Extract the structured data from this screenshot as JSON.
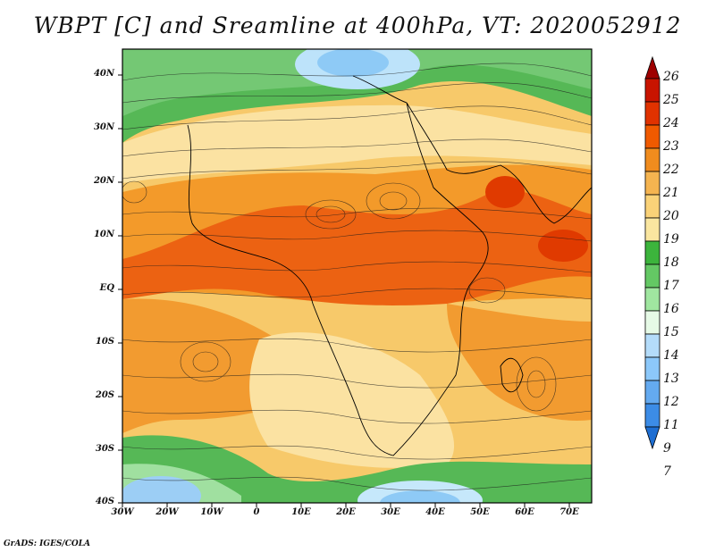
{
  "title": "WBPT [C] and Sreamline at 400hPa, VT: 2020052912",
  "credit": "GrADS: IGES/COLA",
  "lat_labels": [
    "40N",
    "30N",
    "20N",
    "10N",
    "EQ",
    "10S",
    "20S",
    "30S",
    "40S"
  ],
  "lon_labels": [
    "30W",
    "20W",
    "10W",
    "0",
    "10E",
    "20E",
    "30E",
    "40E",
    "50E",
    "60E",
    "70E"
  ],
  "colorbar": {
    "labels": [
      "26",
      "25",
      "24",
      "23",
      "22",
      "21",
      "20",
      "19",
      "18",
      "17",
      "16",
      "15",
      "14",
      "13",
      "12",
      "11",
      "9",
      "7"
    ],
    "colors": [
      "#9e0000",
      "#c81400",
      "#e03200",
      "#f05a00",
      "#f08c1e",
      "#f5b450",
      "#fad278",
      "#fae6a0",
      "#3cb43c",
      "#64c864",
      "#a0e6a0",
      "#e6fae6",
      "#b4dcfa",
      "#8cc8fa",
      "#64aaf0",
      "#3c8ce6",
      "#1e6ed2"
    ]
  }
}
